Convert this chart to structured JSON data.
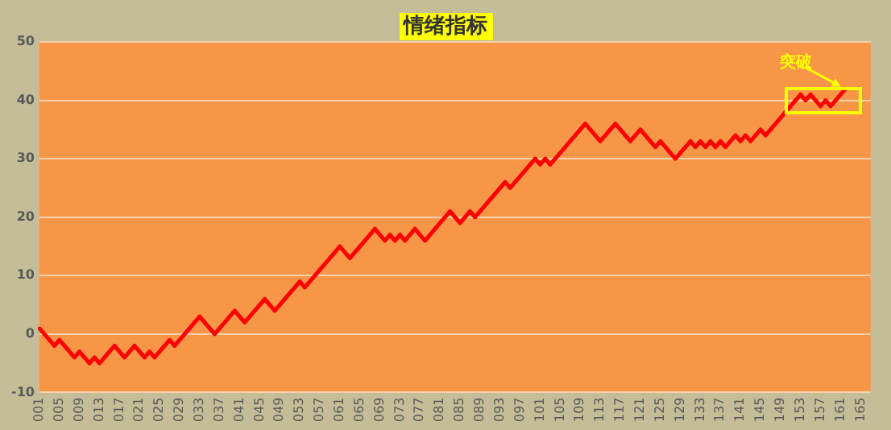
{
  "chart_data": {
    "type": "line",
    "title": "情绪指标",
    "categories": [
      "001",
      null,
      null,
      null,
      "005",
      null,
      null,
      null,
      "009",
      null,
      null,
      null,
      "013",
      null,
      null,
      null,
      "017",
      null,
      null,
      null,
      "021",
      null,
      null,
      null,
      "025",
      null,
      null,
      null,
      "029",
      null,
      null,
      null,
      "033",
      null,
      null,
      null,
      "037",
      null,
      null,
      null,
      "041",
      null,
      null,
      null,
      "045",
      null,
      null,
      null,
      "049",
      null,
      null,
      null,
      "053",
      null,
      null,
      null,
      "057",
      null,
      null,
      null,
      "061",
      null,
      null,
      null,
      "065",
      null,
      null,
      null,
      "069",
      null,
      null,
      null,
      "073",
      null,
      null,
      null,
      "077",
      null,
      null,
      null,
      "081",
      null,
      null,
      null,
      "085",
      null,
      null,
      null,
      "089",
      null,
      null,
      null,
      "093",
      null,
      null,
      null,
      "097",
      null,
      null,
      null,
      "101",
      null,
      null,
      null,
      "105",
      null,
      null,
      null,
      "109",
      null,
      null,
      null,
      "113",
      null,
      null,
      null,
      "117",
      null,
      null,
      null,
      "121",
      null,
      null,
      null,
      "125",
      null,
      null,
      null,
      "129",
      null,
      null,
      null,
      "133",
      null,
      null,
      null,
      "137",
      null,
      null,
      null,
      "141",
      null,
      null,
      null,
      "145",
      null,
      null,
      null,
      "149",
      null,
      null,
      null,
      "153",
      null,
      null,
      null,
      "157",
      null,
      null,
      null,
      "161",
      null,
      null,
      null,
      "165",
      null,
      null
    ],
    "series": [
      {
        "color": "#ff0000",
        "values": [
          1,
          0,
          -1,
          -2,
          -1,
          -2,
          -3,
          -4,
          -3,
          -4,
          -5,
          -4,
          -5,
          -4,
          -3,
          -2,
          -3,
          -4,
          -3,
          -2,
          -3,
          -4,
          -3,
          -4,
          -3,
          -2,
          -1,
          -2,
          -1,
          0,
          1,
          2,
          3,
          2,
          1,
          0,
          1,
          2,
          3,
          4,
          3,
          2,
          3,
          4,
          5,
          6,
          5,
          4,
          5,
          6,
          7,
          8,
          9,
          8,
          9,
          10,
          11,
          12,
          13,
          14,
          15,
          14,
          13,
          14,
          15,
          16,
          17,
          18,
          17,
          16,
          17,
          16,
          17,
          16,
          17,
          18,
          17,
          16,
          17,
          18,
          19,
          20,
          21,
          20,
          19,
          20,
          21,
          20,
          21,
          22,
          23,
          24,
          25,
          26,
          25,
          26,
          27,
          28,
          29,
          30,
          29,
          30,
          29,
          30,
          31,
          32,
          33,
          34,
          35,
          36,
          35,
          34,
          33,
          34,
          35,
          36,
          35,
          34,
          33,
          34,
          35,
          34,
          33,
          32,
          33,
          32,
          31,
          30,
          31,
          32,
          33,
          32,
          33,
          32,
          33,
          32,
          33,
          32,
          33,
          34,
          33,
          34,
          33,
          34,
          35,
          34,
          35,
          36,
          37,
          38,
          39,
          40,
          41,
          40,
          41,
          40,
          39,
          40,
          39,
          40,
          41,
          42,
          null,
          null,
          null,
          null,
          null
        ]
      }
    ],
    "annotations": [
      "突破"
    ],
    "ylim": [
      -10,
      50
    ],
    "yticks": [
      -10,
      0,
      10,
      20,
      30,
      40,
      50
    ],
    "grid": "y",
    "marker": "square",
    "legend": false
  }
}
